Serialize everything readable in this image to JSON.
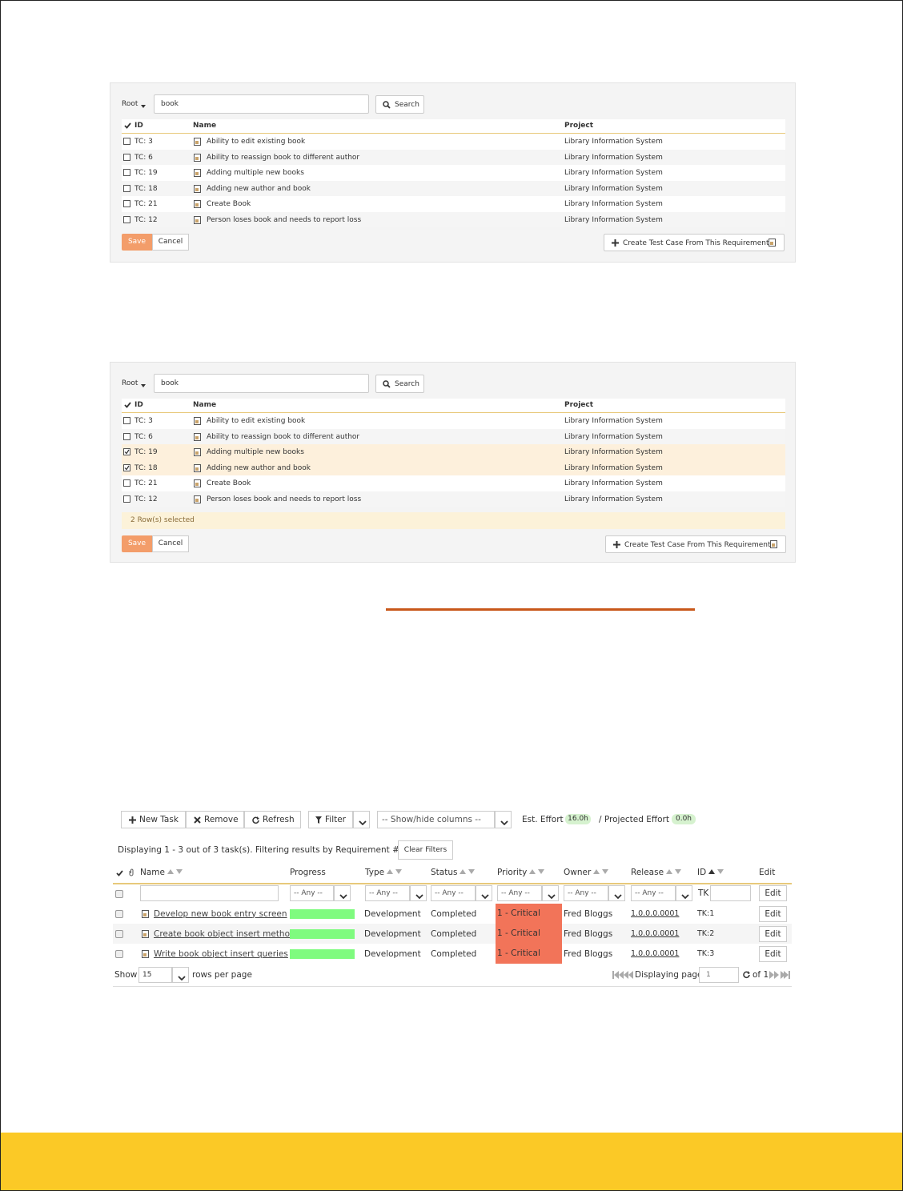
{
  "panels": [
    {
      "root": "Root",
      "search": "book",
      "search_button": "Search",
      "columns": [
        "ID",
        "Name",
        "Project"
      ],
      "rows": [
        {
          "id": "TC: 3",
          "name": "Ability to edit existing book",
          "project": "Library Information System",
          "selected": false
        },
        {
          "id": "TC: 6",
          "name": "Ability to reassign book to different author",
          "project": "Library Information System",
          "selected": false
        },
        {
          "id": "TC: 19",
          "name": "Adding multiple new books",
          "project": "Library Information System",
          "selected": false
        },
        {
          "id": "TC: 18",
          "name": "Adding new author and book",
          "project": "Library Information System",
          "selected": false
        },
        {
          "id": "TC: 21",
          "name": "Create Book",
          "project": "Library Information System",
          "selected": false
        },
        {
          "id": "TC: 12",
          "name": "Person loses book and needs to report loss",
          "project": "Library Information System",
          "selected": false
        }
      ],
      "save": "Save",
      "cancel": "Cancel",
      "create": "Create Test Case From This Requirement"
    },
    {
      "root": "Root",
      "search": "book",
      "search_button": "Search",
      "columns": [
        "ID",
        "Name",
        "Project"
      ],
      "rows": [
        {
          "id": "TC: 3",
          "name": "Ability to edit existing book",
          "project": "Library Information System",
          "selected": false
        },
        {
          "id": "TC: 6",
          "name": "Ability to reassign book to different author",
          "project": "Library Information System",
          "selected": false
        },
        {
          "id": "TC: 19",
          "name": "Adding multiple new books",
          "project": "Library Information System",
          "selected": true
        },
        {
          "id": "TC: 18",
          "name": "Adding new author and book",
          "project": "Library Information System",
          "selected": true
        },
        {
          "id": "TC: 21",
          "name": "Create Book",
          "project": "Library Information System",
          "selected": false
        },
        {
          "id": "TC: 12",
          "name": "Person loses book and needs to report loss",
          "project": "Library Information System",
          "selected": false
        }
      ],
      "status": "2 Row(s) selected",
      "save": "Save",
      "cancel": "Cancel",
      "create": "Create Test Case From This Requirement"
    }
  ],
  "grid": {
    "toolbar": [
      "New Task",
      "Remove",
      "Refresh"
    ],
    "filter": "Filter",
    "columns_select": "-- Show/hide columns --",
    "est_label": "Est. Effort",
    "est_value": "16.0h",
    "proj_label": "/ Projected Effort",
    "proj_value": "0.0h",
    "display_text": "Displaying 1 - 3 out of 3 task(s). Filtering results by Requirement #.",
    "clear": "Clear Filters",
    "headers": [
      "Name",
      "Progress",
      "Type",
      "Status",
      "Priority",
      "Owner",
      "Release",
      "ID",
      "Edit"
    ],
    "any": "-- Any --",
    "id_prefix": "TK",
    "edit": "Edit",
    "rows": [
      {
        "name": "Develop new book entry screen",
        "progress": 100,
        "type": "Development",
        "status": "Completed",
        "priority": "1 - Critical",
        "owner": "Fred Bloggs",
        "release": "1.0.0.0.0001",
        "id": "TK:1"
      },
      {
        "name": "Create book object insert method",
        "progress": 100,
        "type": "Development",
        "status": "Completed",
        "priority": "1 - Critical",
        "owner": "Fred Bloggs",
        "release": "1.0.0.0.0001",
        "id": "TK:2"
      },
      {
        "name": "Write book object insert queries",
        "progress": 100,
        "type": "Development",
        "status": "Completed",
        "priority": "1 - Critical",
        "owner": "Fred Bloggs",
        "release": "1.0.0.0.0001",
        "id": "TK:3"
      }
    ],
    "show": "Show",
    "page_size": "15",
    "rows_per_page": "rows per page",
    "displaying_page": "Displaying page",
    "page": "1",
    "of": "of 1"
  }
}
